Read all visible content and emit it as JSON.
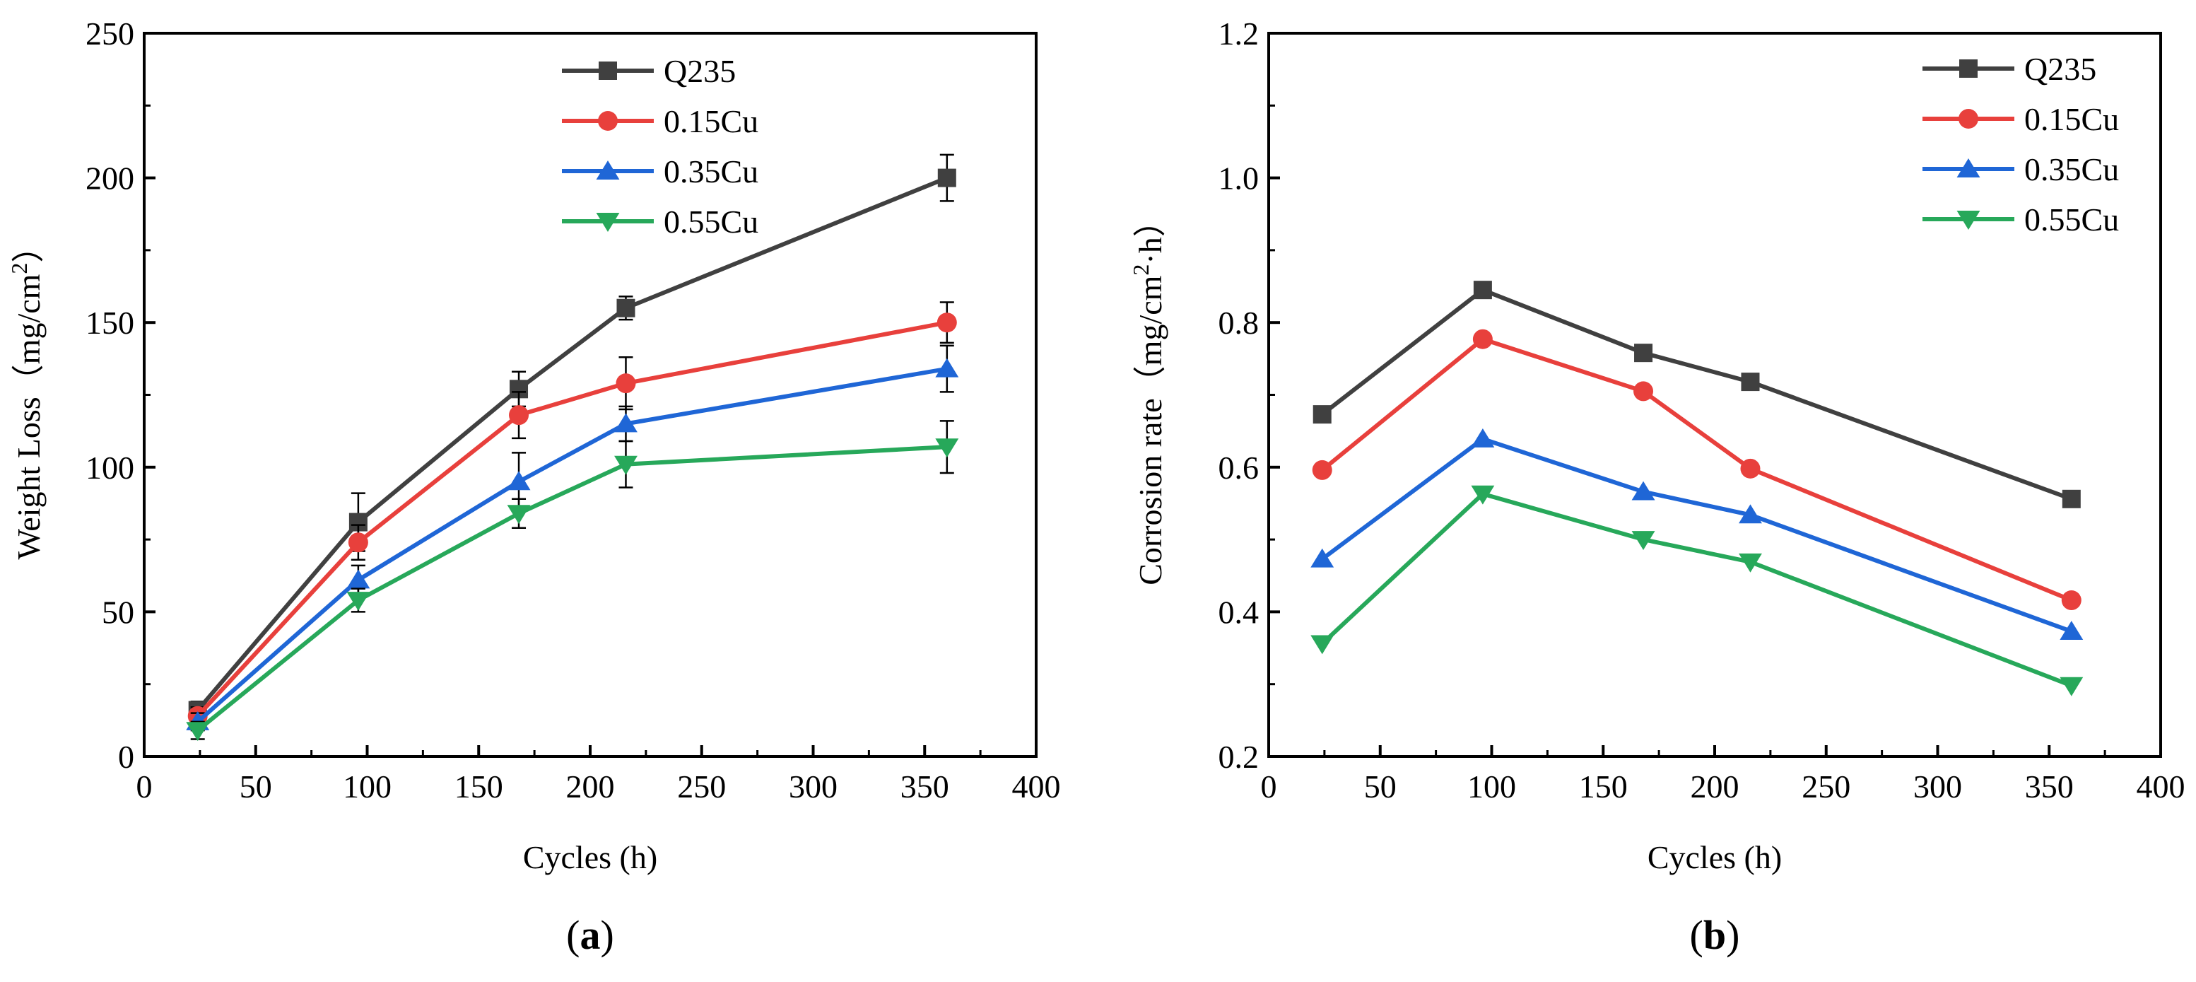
{
  "chart_data": [
    {
      "type": "line",
      "panel_label": "a",
      "title": "",
      "xlabel": "Cycles (h)",
      "ylabel": {
        "main": "Weight Loss（mg/cm",
        "sup": "2",
        "end": "）"
      },
      "xlim": [
        0,
        400
      ],
      "ylim": [
        0,
        250
      ],
      "xticks": [
        0,
        50,
        100,
        150,
        200,
        250,
        300,
        350,
        400
      ],
      "yticks": [
        0,
        50,
        100,
        150,
        200,
        250
      ],
      "grid": false,
      "legend_position": "top-center",
      "x": [
        24,
        96,
        168,
        216,
        360
      ],
      "series": [
        {
          "name": "Q235",
          "color": "#404040",
          "marker": "square",
          "values": [
            16,
            81,
            127,
            155,
            200
          ],
          "errors": [
            3,
            10,
            6,
            4,
            8
          ]
        },
        {
          "name": "0.15Cu",
          "color": "#e8403c",
          "marker": "circle",
          "values": [
            14,
            74,
            118,
            129,
            150
          ],
          "errors": [
            3,
            6,
            8,
            9,
            7
          ]
        },
        {
          "name": "0.35Cu",
          "color": "#1f66d6",
          "marker": "triangle",
          "values": [
            12,
            61,
            95,
            115,
            134
          ],
          "errors": [
            3,
            5,
            10,
            6,
            8
          ]
        },
        {
          "name": "0.55Cu",
          "color": "#27a85a",
          "marker": "tri-down",
          "values": [
            9,
            54,
            84,
            101,
            107
          ],
          "errors": [
            3,
            4,
            5,
            8,
            9
          ]
        }
      ]
    },
    {
      "type": "line",
      "panel_label": "b",
      "title": "",
      "xlabel": "Cycles (h)",
      "ylabel": {
        "main": "Corrosion rate（mg/cm",
        "sup": "2",
        "end": "·h）"
      },
      "xlim": [
        0,
        400
      ],
      "ylim": [
        0.2,
        1.2
      ],
      "xticks": [
        0,
        50,
        100,
        150,
        200,
        250,
        300,
        350,
        400
      ],
      "yticks": [
        0.2,
        0.4,
        0.6,
        0.8,
        1.0,
        1.2
      ],
      "ytick_labels": [
        "0.2",
        "0.4",
        "0.6",
        "0.8",
        "1.0",
        "1.2"
      ],
      "grid": false,
      "legend_position": "top-right",
      "x": [
        24,
        96,
        168,
        216,
        360
      ],
      "series": [
        {
          "name": "Q235",
          "color": "#404040",
          "marker": "square",
          "values": [
            0.673,
            0.845,
            0.758,
            0.718,
            0.556
          ]
        },
        {
          "name": "0.15Cu",
          "color": "#e8403c",
          "marker": "circle",
          "values": [
            0.596,
            0.777,
            0.705,
            0.598,
            0.416
          ]
        },
        {
          "name": "0.35Cu",
          "color": "#1f66d6",
          "marker": "triangle",
          "values": [
            0.473,
            0.639,
            0.566,
            0.534,
            0.373
          ]
        },
        {
          "name": "0.55Cu",
          "color": "#27a85a",
          "marker": "tri-down",
          "values": [
            0.356,
            0.563,
            0.5,
            0.469,
            0.298
          ]
        }
      ]
    }
  ]
}
